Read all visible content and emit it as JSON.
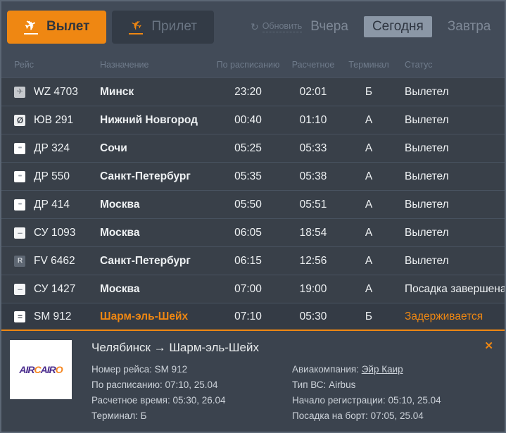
{
  "colors": {
    "accent": "#ef8712",
    "day_active_bg": "#8b97a6",
    "logo_purple": "#4b2d8e",
    "logo_orange": "#f6861f"
  },
  "tabs": {
    "departure": {
      "label": "Вылет",
      "active": true
    },
    "arrival": {
      "label": "Прилет",
      "active": false
    }
  },
  "toolbar": {
    "refresh_label": "Обновить",
    "refresh_icon": "↻",
    "days": [
      {
        "label": "Вчера",
        "active": false
      },
      {
        "label": "Сегодня",
        "active": true
      },
      {
        "label": "Завтра",
        "active": false
      }
    ]
  },
  "table": {
    "columns": [
      "Рейс",
      "Назначение",
      "По расписанию",
      "Расчетное",
      "Терминал",
      "Статус"
    ],
    "rows": [
      {
        "flight": "WZ 4703",
        "destination": "Минск",
        "scheduled": "23:20",
        "estimated": "02:01",
        "terminal": "Б",
        "status": "Вылетел",
        "highlight": false,
        "icon": {
          "glyph": "✈",
          "bg": "#c6c9cd",
          "color": "#84898f",
          "size": 10
        }
      },
      {
        "flight": "ЮВ 291",
        "destination": "Нижний Новгород",
        "scheduled": "00:40",
        "estimated": "01:10",
        "terminal": "А",
        "status": "Вылетел",
        "highlight": false,
        "icon": {
          "glyph": "Ø",
          "bg": "#eef0f1",
          "color": "#3f454d",
          "size": 12
        }
      },
      {
        "flight": "ДР 324",
        "destination": "Сочи",
        "scheduled": "05:25",
        "estimated": "05:33",
        "terminal": "А",
        "status": "Вылетел",
        "highlight": false,
        "icon": {
          "glyph": "•••",
          "bg": "#ffffff",
          "color": "#9ba2ab",
          "size": 7
        }
      },
      {
        "flight": "ДР 550",
        "destination": "Санкт-Петербург",
        "scheduled": "05:35",
        "estimated": "05:38",
        "terminal": "А",
        "status": "Вылетел",
        "highlight": false,
        "icon": {
          "glyph": "•••",
          "bg": "#ffffff",
          "color": "#9ba2ab",
          "size": 7
        }
      },
      {
        "flight": "ДР 414",
        "destination": "Москва",
        "scheduled": "05:50",
        "estimated": "05:51",
        "terminal": "А",
        "status": "Вылетел",
        "highlight": false,
        "icon": {
          "glyph": "•••",
          "bg": "#ffffff",
          "color": "#9ba2ab",
          "size": 7
        }
      },
      {
        "flight": "СУ 1093",
        "destination": "Москва",
        "scheduled": "06:05",
        "estimated": "18:54",
        "terminal": "А",
        "status": "Вылетел",
        "highlight": false,
        "icon": {
          "glyph": "–",
          "bg": "#f4f5f6",
          "color": "#8f959c",
          "size": 13
        }
      },
      {
        "flight": "FV 6462",
        "destination": "Санкт-Петербург",
        "scheduled": "06:15",
        "estimated": "12:56",
        "terminal": "А",
        "status": "Вылетел",
        "highlight": false,
        "icon": {
          "glyph": "R",
          "bg": "#5e6773",
          "color": "#ccd1d6",
          "size": 10
        }
      },
      {
        "flight": "СУ 1427",
        "destination": "Москва",
        "scheduled": "07:00",
        "estimated": "19:00",
        "terminal": "А",
        "status": "Посадка завершена",
        "highlight": false,
        "icon": {
          "glyph": "–",
          "bg": "#f4f5f6",
          "color": "#8f959c",
          "size": 13
        }
      },
      {
        "flight": "SM 912",
        "destination": "Шарм-эль-Шейх",
        "scheduled": "07:10",
        "estimated": "05:30",
        "terminal": "Б",
        "status": "Задерживается",
        "highlight": true,
        "icon": {
          "glyph": "=",
          "bg": "#ffffff",
          "color": "#4a5058",
          "size": 12
        }
      }
    ]
  },
  "details": {
    "route_title": "Челябинск → Шарм-эль-Шейх",
    "close_icon": "✕",
    "airline_logo_segments": [
      {
        "text": "AIR",
        "color": "#4b2d8e"
      },
      {
        "text": "C",
        "color": "#f6861f"
      },
      {
        "text": "AIR",
        "color": "#4b2d8e"
      },
      {
        "text": "O",
        "color": "#f6861f"
      }
    ],
    "left": [
      {
        "label": "Номер рейса",
        "value": "SM 912",
        "link": false
      },
      {
        "label": "По расписанию",
        "value": "07:10, 25.04",
        "link": false
      },
      {
        "label": "Расчетное время",
        "value": "05:30, 26.04",
        "link": false
      },
      {
        "label": "Терминал",
        "value": "Б",
        "link": false
      }
    ],
    "right": [
      {
        "label": "Авиакомпания",
        "value": "Эйр Каир",
        "link": true
      },
      {
        "label": "Тип ВС",
        "value": "Airbus",
        "link": false
      },
      {
        "label": "Начало регистрации",
        "value": "05:10, 25.04",
        "link": false
      },
      {
        "label": "Посадка на борт",
        "value": "07:05, 25.04",
        "link": false
      }
    ]
  }
}
